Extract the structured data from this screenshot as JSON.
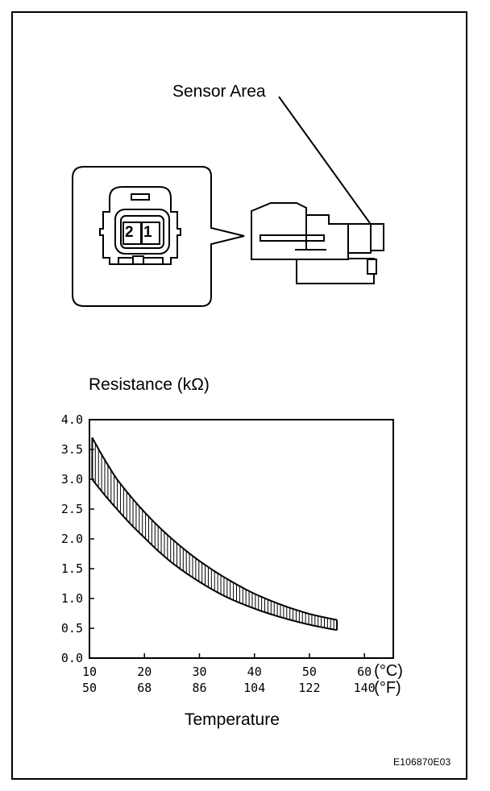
{
  "diagram": {
    "sensor_label": "Sensor Area",
    "connector_pins": [
      "2",
      "1"
    ],
    "figure_id": "E106870E03"
  },
  "chart_data": {
    "type": "area",
    "title": "Resistance (kΩ)",
    "xlabel": "Temperature",
    "ylabel": "",
    "x_unit_primary": "(°C)",
    "x_unit_secondary": "(°F)",
    "x_ticks_c": [
      "10",
      "20",
      "30",
      "40",
      "50",
      "60"
    ],
    "x_ticks_f": [
      "50",
      "68",
      "86",
      "104",
      "122",
      "140"
    ],
    "xlim": [
      10,
      60
    ],
    "y_ticks": [
      "0.0",
      "0.5",
      "1.0",
      "1.5",
      "2.0",
      "2.5",
      "3.0",
      "3.5",
      "4.0"
    ],
    "ylim": [
      0,
      4
    ],
    "grid": false,
    "series": [
      {
        "name": "upper",
        "x": [
          10.5,
          15,
          20,
          25,
          30,
          35,
          40,
          45,
          50,
          55
        ],
        "values": [
          3.7,
          3.0,
          2.45,
          2.0,
          1.63,
          1.33,
          1.08,
          0.89,
          0.74,
          0.64
        ]
      },
      {
        "name": "lower",
        "x": [
          10.5,
          15,
          20,
          25,
          30,
          35,
          40,
          45,
          50,
          55
        ],
        "values": [
          3.0,
          2.5,
          2.02,
          1.6,
          1.28,
          1.02,
          0.83,
          0.68,
          0.56,
          0.47
        ]
      }
    ]
  }
}
